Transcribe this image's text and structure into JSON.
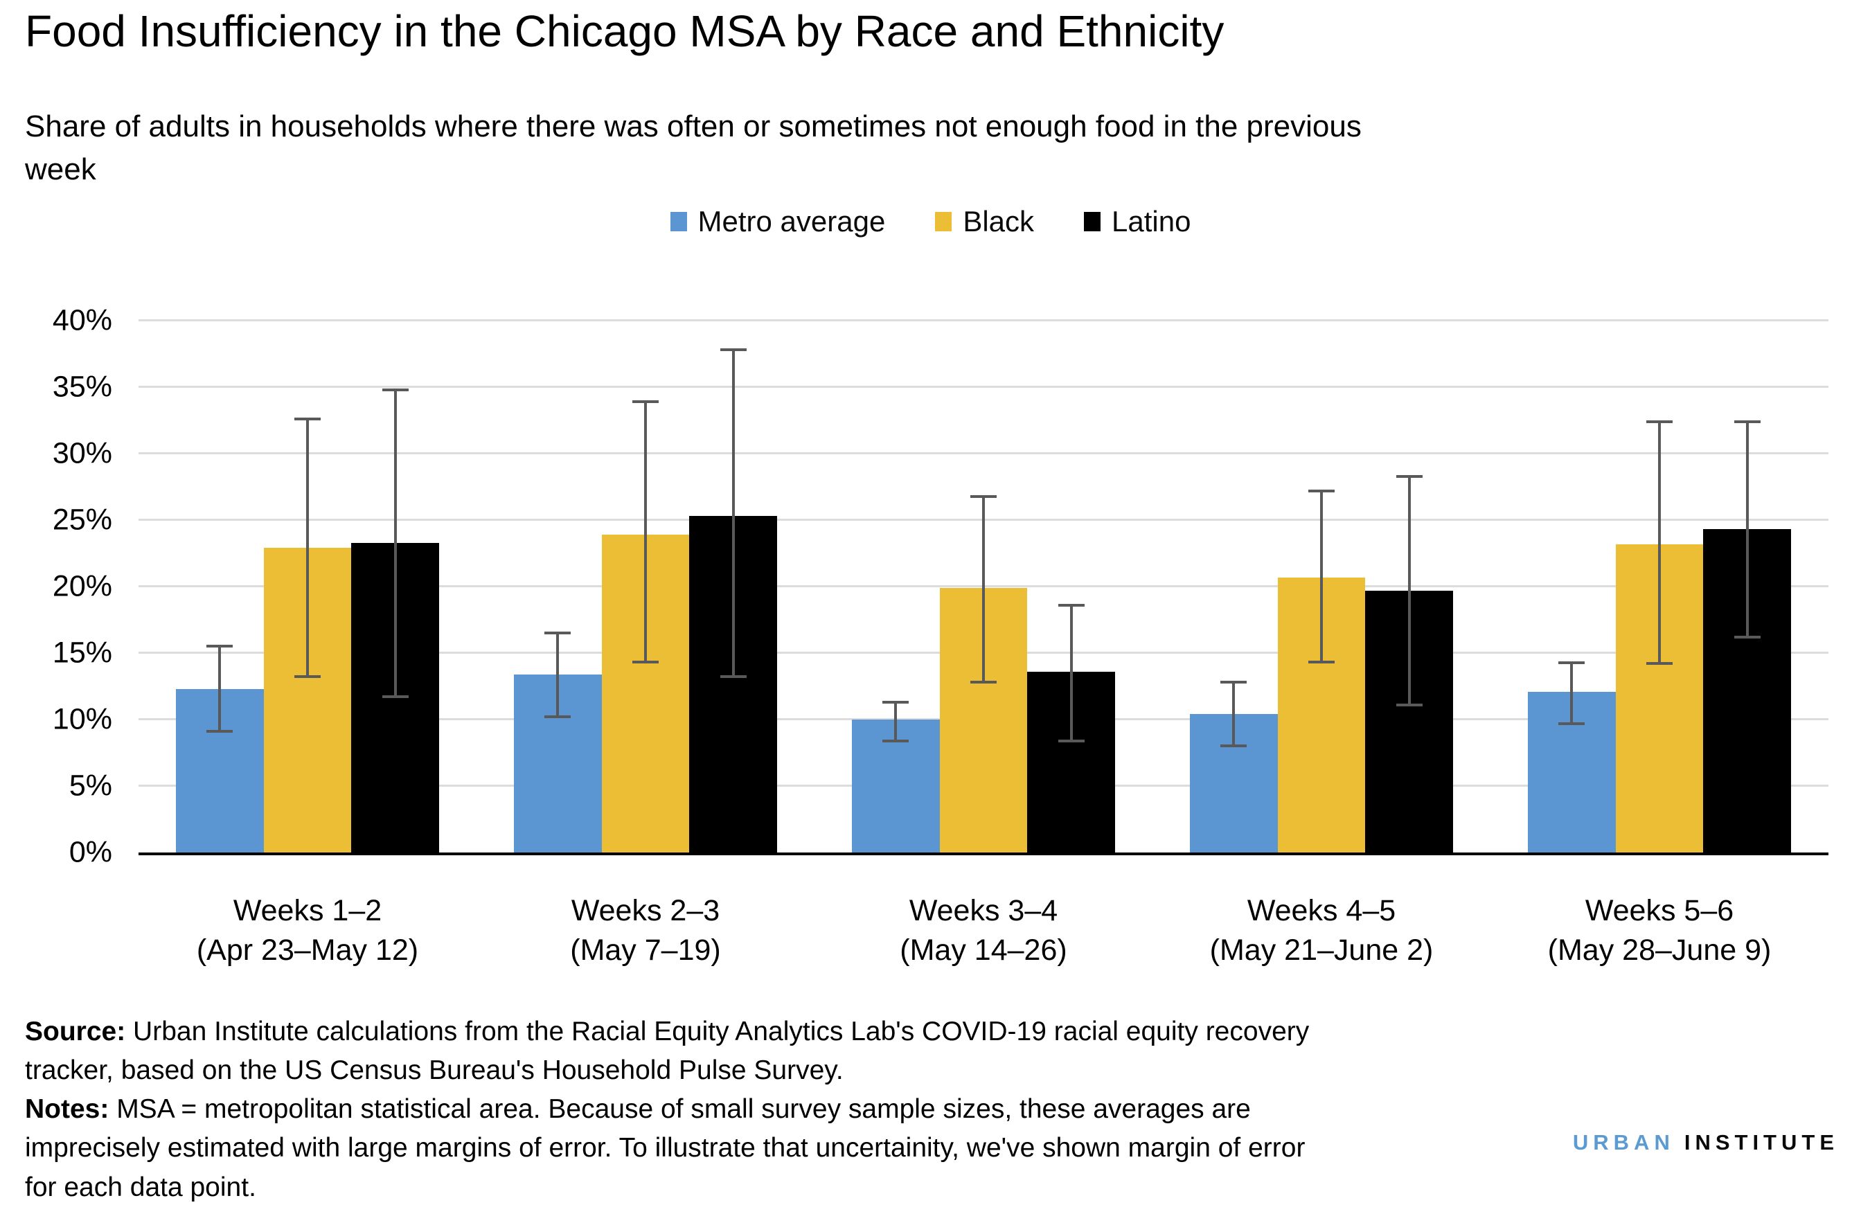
{
  "header": {
    "title": "Food Insufficiency in the Chicago MSA by Race and Ethnicity",
    "subtitle_lines": [
      "Share of adults in households where there was often or sometimes not enough food in the previous",
      "week"
    ]
  },
  "legend": [
    {
      "label": "Metro average",
      "color": "#5b95d2"
    },
    {
      "label": "Black",
      "color": "#ecbe35"
    },
    {
      "label": "Latino",
      "color": "#000000"
    }
  ],
  "chart_data": {
    "type": "bar",
    "title": "Food Insufficiency in the Chicago MSA by Race and Ethnicity",
    "subtitle": "Share of adults in households where there was often or sometimes not enough food in the previous week",
    "categories": [
      {
        "label": "Weeks 1–2",
        "dates": "(Apr 23–May 12)"
      },
      {
        "label": "Weeks 2–3",
        "dates": "(May 7–19)"
      },
      {
        "label": "Weeks 3–4",
        "dates": "(May 14–26)"
      },
      {
        "label": "Weeks 4–5",
        "dates": "(May 21–June 2)"
      },
      {
        "label": "Weeks 5–6",
        "dates": "(May 28–June 9)"
      }
    ],
    "series": [
      {
        "name": "Metro average",
        "color": "#5b95d2",
        "values": [
          12.3,
          13.4,
          10.0,
          10.4,
          12.1
        ],
        "error_low": [
          9.0,
          10.1,
          8.3,
          7.9,
          9.6
        ],
        "error_high": [
          15.6,
          16.6,
          11.4,
          12.9,
          14.4
        ]
      },
      {
        "name": "Black",
        "color": "#ecbe35",
        "values": [
          22.9,
          23.9,
          19.9,
          20.7,
          23.2
        ],
        "error_low": [
          13.1,
          14.2,
          12.7,
          14.2,
          14.1
        ],
        "error_high": [
          32.7,
          34.0,
          26.9,
          27.3,
          32.5
        ]
      },
      {
        "name": "Latino",
        "color": "#000000",
        "values": [
          23.3,
          25.3,
          13.6,
          19.7,
          24.3
        ],
        "error_low": [
          11.6,
          13.1,
          8.3,
          11.0,
          16.1
        ],
        "error_high": [
          34.9,
          37.9,
          18.7,
          28.4,
          32.5
        ]
      }
    ],
    "ylim": [
      0,
      40
    ],
    "ytick_step": 5,
    "ytick_format": "percent",
    "grid": "horizontal",
    "legend_position": "top",
    "error_bars": true,
    "error_bar_color": "#595959",
    "gridline_color": "#dcdcdc"
  },
  "footer": {
    "source_label": "Source:",
    "source_lines": [
      "Urban Institute calculations from the Racial Equity Analytics Lab's COVID-19 racial equity recovery",
      "tracker, based on the US Census Bureau's Household Pulse Survey."
    ],
    "notes_label": "Notes:",
    "notes_lines": [
      "MSA = metropolitan statistical area. Because of small survey sample sizes, these averages are",
      "imprecisely estimated with large margins of error. To illustrate that uncertainity, we've shown margin of error",
      "for each data point."
    ]
  },
  "logo": {
    "word1": "URBAN",
    "word2": "INSTITUTE"
  }
}
